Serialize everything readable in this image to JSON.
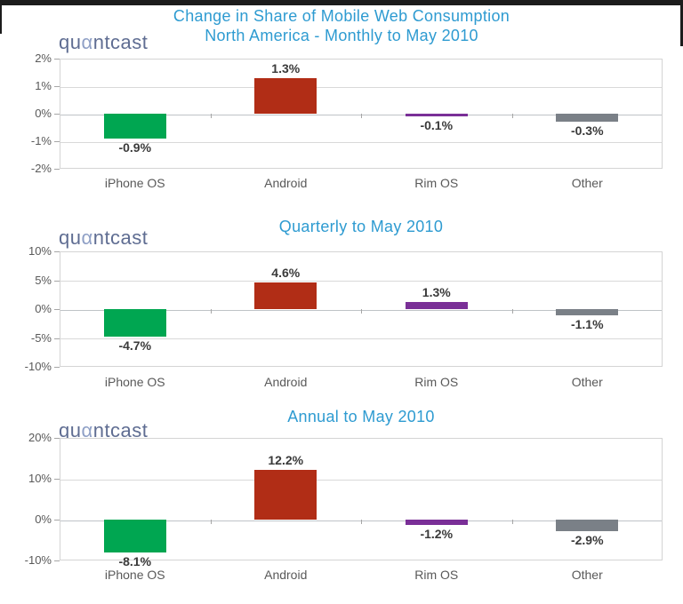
{
  "header": {
    "line1": "Change in Share of Mobile Web Consumption",
    "line2": "North America - Monthly to May 2010"
  },
  "logo": {
    "pre": "qu",
    "alpha": "α",
    "post": "ntcast"
  },
  "colors": {
    "title_blue": "#2E9BD1",
    "logo_main": "#5F6D92",
    "logo_alpha": "#8FA0C6",
    "axis_text": "#595959",
    "value_text": "#3A3A3A",
    "gridline": "#D9D9D9",
    "zero_line": "#BFC3C7",
    "frame_black": "#1C1C1C",
    "iphone_green": "#00A651",
    "android_red": "#B12D16",
    "rim_purple": "#7A2F97",
    "other_gray": "#7A8087"
  },
  "chart_data": [
    {
      "type": "bar",
      "title": "",
      "subtitle_note": "titled by page header: North America - Monthly to May 2010",
      "categories": [
        "iPhone OS",
        "Android",
        "Rim OS",
        "Other"
      ],
      "values": [
        -0.9,
        1.3,
        -0.1,
        -0.3
      ],
      "value_labels": [
        "-0.9%",
        "1.3%",
        "-0.1%",
        "-0.3%"
      ],
      "bar_colors": [
        "#00A651",
        "#B12D16",
        "#7A2F97",
        "#7A8087"
      ],
      "xlabel": "",
      "ylabel": "",
      "ylim": [
        -2,
        2
      ],
      "yticks": [
        2,
        1,
        0,
        -1,
        -2
      ],
      "ytick_labels": [
        "2%",
        "1%",
        "0%",
        "-1%",
        "-2%"
      ],
      "grid": true,
      "legend": "none"
    },
    {
      "type": "bar",
      "title": "Quarterly to May 2010",
      "categories": [
        "iPhone OS",
        "Android",
        "Rim OS",
        "Other"
      ],
      "values": [
        -4.7,
        4.6,
        1.3,
        -1.1
      ],
      "value_labels": [
        "-4.7%",
        "4.6%",
        "1.3%",
        "-1.1%"
      ],
      "bar_colors": [
        "#00A651",
        "#B12D16",
        "#7A2F97",
        "#7A8087"
      ],
      "xlabel": "",
      "ylabel": "",
      "ylim": [
        -10,
        10
      ],
      "yticks": [
        10,
        5,
        0,
        -5,
        -10
      ],
      "ytick_labels": [
        "10%",
        "5%",
        "0%",
        "-5%",
        "-10%"
      ],
      "grid": true,
      "legend": "none"
    },
    {
      "type": "bar",
      "title": "Annual to May 2010",
      "categories": [
        "iPhone OS",
        "Android",
        "Rim OS",
        "Other"
      ],
      "values": [
        -8.1,
        12.2,
        -1.2,
        -2.9
      ],
      "value_labels": [
        "-8.1%",
        "12.2%",
        "-1.2%",
        "-2.9%"
      ],
      "bar_colors": [
        "#00A651",
        "#B12D16",
        "#7A2F97",
        "#7A8087"
      ],
      "xlabel": "",
      "ylabel": "",
      "ylim": [
        -10,
        20
      ],
      "yticks": [
        20,
        10,
        0,
        -10
      ],
      "ytick_labels": [
        "20%",
        "10%",
        "0%",
        "-10%"
      ],
      "grid": true,
      "legend": "none"
    }
  ]
}
